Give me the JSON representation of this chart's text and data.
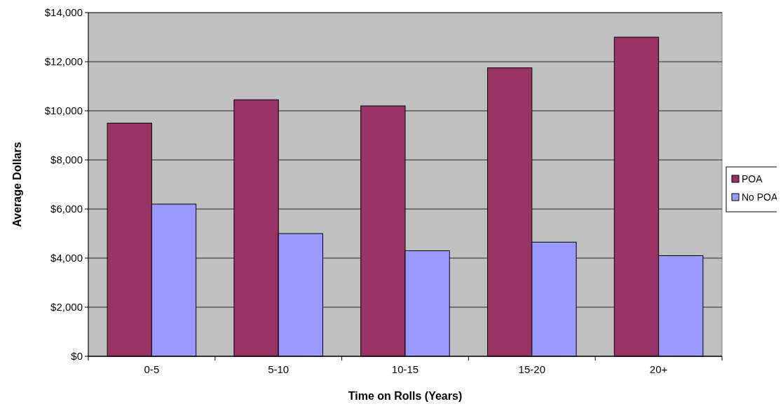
{
  "chart_data": {
    "type": "bar",
    "xlabel": "Time on Rolls (Years)",
    "ylabel": "Average Dollars",
    "categories": [
      "0-5",
      "5-10",
      "10-15",
      "15-20",
      "20+"
    ],
    "series": [
      {
        "name": "POA",
        "color": "#993366",
        "values": [
          9500,
          10450,
          10200,
          11750,
          13000
        ]
      },
      {
        "name": "No POA",
        "color": "#9999ff",
        "values": [
          6200,
          5000,
          4300,
          4650,
          4100
        ]
      }
    ],
    "ylim": [
      0,
      14000
    ],
    "yticks": [
      {
        "value": 0,
        "label": "$0"
      },
      {
        "value": 2000,
        "label": "$2,000"
      },
      {
        "value": 4000,
        "label": "$4,000"
      },
      {
        "value": 6000,
        "label": "$6,000"
      },
      {
        "value": 8000,
        "label": "$8,000"
      },
      {
        "value": 10000,
        "label": "$10,000"
      },
      {
        "value": 12000,
        "label": "$12,000"
      },
      {
        "value": 14000,
        "label": "$14,000"
      }
    ],
    "grid": "y",
    "legend": "right"
  }
}
